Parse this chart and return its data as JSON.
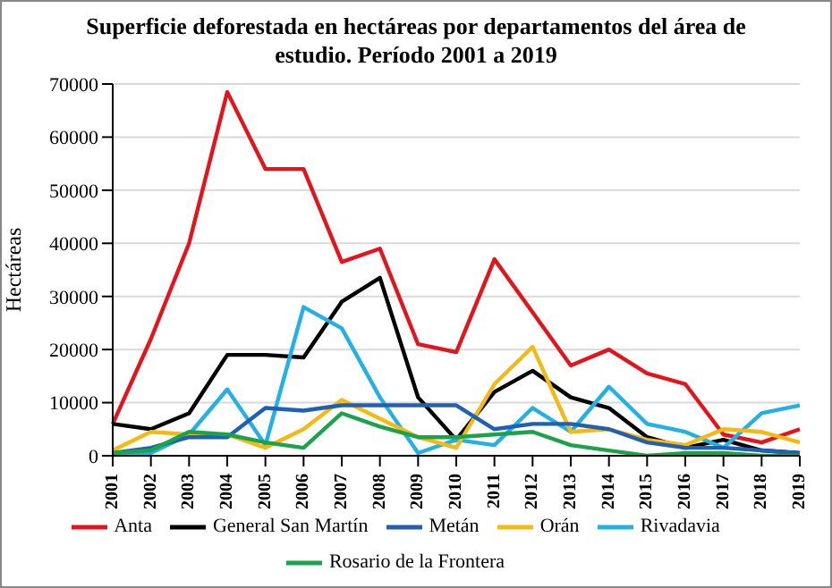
{
  "chart_data": {
    "type": "line",
    "title": "Superficie deforestada en hectáreas por departamentos del área de estudio. Período 2001 a 2019",
    "ylabel": "Hectáreas",
    "categories": [
      "2001",
      "2002",
      "2003",
      "2004",
      "2005",
      "2006",
      "2007",
      "2008",
      "2009",
      "2010",
      "2011",
      "2012",
      "2013",
      "2014",
      "2015",
      "2016",
      "2017",
      "2018",
      "2019"
    ],
    "series": [
      {
        "name": "Anta",
        "color": "#e3141b",
        "values": [
          6000,
          22000,
          40000,
          68500,
          54000,
          54000,
          36500,
          39000,
          21000,
          19500,
          37000,
          27000,
          17000,
          20000,
          15500,
          13500,
          4000,
          2500,
          5000
        ]
      },
      {
        "name": "General San Martín",
        "color": "#000000",
        "values": [
          6000,
          5000,
          8000,
          19000,
          19000,
          18500,
          29000,
          33500,
          11000,
          3000,
          12000,
          16000,
          11000,
          9000,
          3500,
          1500,
          3000,
          1000,
          500
        ]
      },
      {
        "name": "Rivadavia",
        "color": "#22b0e6",
        "values": [
          0,
          500,
          4000,
          12500,
          2000,
          28000,
          24000,
          11000,
          500,
          3000,
          2000,
          9000,
          4500,
          13000,
          6000,
          4500,
          1500,
          8000,
          9500
        ]
      },
      {
        "name": "Orán",
        "color": "#f5b914",
        "values": [
          1000,
          4500,
          4000,
          4000,
          1500,
          5000,
          10500,
          7000,
          3500,
          1500,
          13500,
          20500,
          4500,
          5000,
          3000,
          2000,
          5000,
          4500,
          2500
        ]
      },
      {
        "name": "Metán",
        "color": "#1f5fb4",
        "values": [
          500,
          1500,
          3500,
          3500,
          9000,
          8500,
          9500,
          9500,
          9500,
          9500,
          5000,
          6000,
          6000,
          5000,
          2500,
          1500,
          1500,
          1000,
          500
        ]
      },
      {
        "name": "Rosario de la Frontera",
        "color": "#1aa34a",
        "values": [
          500,
          1000,
          4500,
          4000,
          2500,
          1500,
          8000,
          5500,
          3500,
          3500,
          4000,
          4500,
          2000,
          1000,
          0,
          500,
          500,
          0,
          0
        ]
      }
    ],
    "ylim": [
      0,
      70000
    ],
    "yticks": [
      0,
      10000,
      20000,
      30000,
      40000,
      50000,
      60000,
      70000
    ],
    "grid": "y",
    "legend": "bottom",
    "marker": "none",
    "line_style": "solid"
  }
}
